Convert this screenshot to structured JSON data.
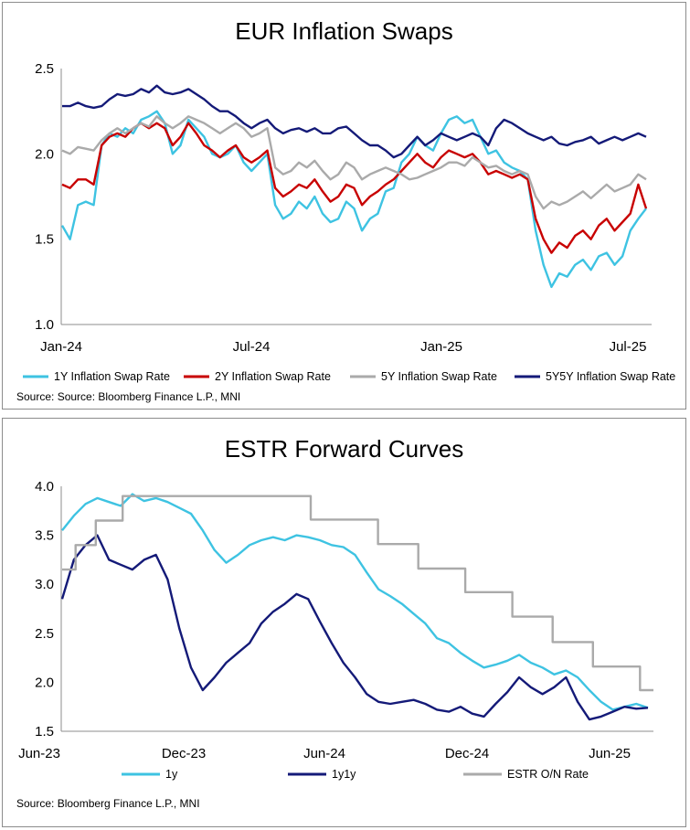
{
  "chart_data": [
    {
      "type": "line",
      "title": "EUR Inflation Swaps",
      "x_tick_labels": [
        "Jan-24",
        "Jul-24",
        "Jan-25",
        "Jul-25"
      ],
      "y_tick_labels": [
        "1.0",
        "1.5",
        "2.0",
        "2.5"
      ],
      "ylim": [
        1.0,
        2.5
      ],
      "grid": false,
      "legend_position": "bottom",
      "source": "Source: Source: Bloomberg Finance L.P., MNI",
      "series": [
        {
          "name": "1Y Inflation Swap Rate",
          "color": "#3ec3e2",
          "values": [
            1.58,
            1.5,
            1.7,
            1.72,
            1.7,
            2.05,
            2.12,
            2.1,
            2.15,
            2.12,
            2.2,
            2.22,
            2.25,
            2.18,
            2.0,
            2.05,
            2.2,
            2.15,
            2.1,
            2.0,
            1.98,
            2.0,
            2.05,
            1.95,
            1.9,
            1.95,
            2.0,
            1.7,
            1.62,
            1.65,
            1.72,
            1.68,
            1.75,
            1.65,
            1.6,
            1.62,
            1.72,
            1.68,
            1.55,
            1.62,
            1.65,
            1.78,
            1.8,
            1.95,
            2.0,
            2.1,
            2.05,
            2.02,
            2.12,
            2.2,
            2.22,
            2.18,
            2.2,
            2.1,
            2.0,
            2.02,
            1.95,
            1.92,
            1.9,
            1.85,
            1.55,
            1.35,
            1.22,
            1.3,
            1.28,
            1.35,
            1.38,
            1.32,
            1.4,
            1.42,
            1.35,
            1.4,
            1.55,
            1.62,
            1.68
          ]
        },
        {
          "name": "2Y Inflation Swap Rate",
          "color": "#c80000",
          "values": [
            1.82,
            1.8,
            1.85,
            1.85,
            1.82,
            2.05,
            2.1,
            2.12,
            2.1,
            2.15,
            2.18,
            2.15,
            2.18,
            2.15,
            2.05,
            2.1,
            2.18,
            2.12,
            2.05,
            2.02,
            1.98,
            2.02,
            2.05,
            1.98,
            1.95,
            1.98,
            2.02,
            1.8,
            1.75,
            1.78,
            1.82,
            1.8,
            1.85,
            1.78,
            1.72,
            1.75,
            1.82,
            1.8,
            1.7,
            1.75,
            1.78,
            1.82,
            1.85,
            1.9,
            1.95,
            2.0,
            1.95,
            1.92,
            1.98,
            2.02,
            2.0,
            1.98,
            2.0,
            1.95,
            1.88,
            1.9,
            1.88,
            1.86,
            1.88,
            1.85,
            1.62,
            1.5,
            1.42,
            1.48,
            1.45,
            1.52,
            1.55,
            1.5,
            1.58,
            1.62,
            1.55,
            1.6,
            1.65,
            1.82,
            1.68
          ]
        },
        {
          "name": "5Y Inflation Swap Rate",
          "color": "#aaaaaa",
          "values": [
            2.02,
            2.0,
            2.04,
            2.03,
            2.02,
            2.08,
            2.12,
            2.15,
            2.12,
            2.15,
            2.18,
            2.16,
            2.22,
            2.18,
            2.15,
            2.18,
            2.22,
            2.2,
            2.18,
            2.15,
            2.12,
            2.15,
            2.18,
            2.15,
            2.1,
            2.12,
            2.15,
            1.92,
            1.88,
            1.9,
            1.95,
            1.92,
            1.96,
            1.9,
            1.85,
            1.88,
            1.95,
            1.92,
            1.85,
            1.88,
            1.9,
            1.92,
            1.9,
            1.88,
            1.85,
            1.86,
            1.88,
            1.9,
            1.92,
            1.95,
            1.95,
            1.93,
            1.98,
            1.95,
            1.92,
            1.93,
            1.9,
            1.88,
            1.9,
            1.88,
            1.75,
            1.68,
            1.72,
            1.7,
            1.72,
            1.75,
            1.78,
            1.74,
            1.78,
            1.82,
            1.78,
            1.8,
            1.82,
            1.88,
            1.85
          ]
        },
        {
          "name": "5Y5Y Inflation Swap Rate",
          "color": "#141a78",
          "values": [
            2.28,
            2.28,
            2.3,
            2.28,
            2.27,
            2.28,
            2.32,
            2.35,
            2.34,
            2.35,
            2.38,
            2.36,
            2.4,
            2.36,
            2.35,
            2.36,
            2.38,
            2.35,
            2.32,
            2.28,
            2.25,
            2.25,
            2.22,
            2.18,
            2.15,
            2.18,
            2.2,
            2.15,
            2.12,
            2.14,
            2.15,
            2.13,
            2.15,
            2.12,
            2.12,
            2.15,
            2.16,
            2.12,
            2.08,
            2.05,
            2.05,
            2.02,
            1.98,
            2.0,
            2.05,
            2.1,
            2.05,
            2.08,
            2.12,
            2.1,
            2.08,
            2.1,
            2.12,
            2.1,
            2.05,
            2.15,
            2.2,
            2.18,
            2.15,
            2.12,
            2.1,
            2.08,
            2.1,
            2.06,
            2.05,
            2.07,
            2.08,
            2.1,
            2.06,
            2.08,
            2.1,
            2.08,
            2.1,
            2.12,
            2.1
          ]
        }
      ]
    },
    {
      "type": "line",
      "title": "ESTR Forward Curves",
      "x_tick_labels": [
        "Jun-23",
        "Dec-23",
        "Jun-24",
        "Dec-24",
        "Jun-25"
      ],
      "y_tick_labels": [
        "1.5",
        "2.0",
        "2.5",
        "3.0",
        "3.5",
        "4.0"
      ],
      "ylim": [
        1.5,
        4.0
      ],
      "grid": false,
      "legend_position": "bottom",
      "source": "Source: Bloomberg Finance L.P., MNI",
      "series": [
        {
          "name": "1y",
          "color": "#3ec3e2",
          "values": [
            3.55,
            3.7,
            3.82,
            3.88,
            3.84,
            3.8,
            3.92,
            3.85,
            3.88,
            3.84,
            3.78,
            3.72,
            3.55,
            3.35,
            3.22,
            3.3,
            3.4,
            3.45,
            3.48,
            3.45,
            3.5,
            3.48,
            3.45,
            3.4,
            3.38,
            3.3,
            3.12,
            2.95,
            2.88,
            2.8,
            2.7,
            2.6,
            2.45,
            2.4,
            2.3,
            2.22,
            2.15,
            2.18,
            2.22,
            2.28,
            2.2,
            2.15,
            2.08,
            2.12,
            2.05,
            1.92,
            1.8,
            1.72,
            1.75,
            1.78,
            1.74
          ]
        },
        {
          "name": "1y1y",
          "color": "#141a78",
          "values": [
            2.85,
            3.25,
            3.4,
            3.5,
            3.25,
            3.2,
            3.15,
            3.25,
            3.3,
            3.05,
            2.55,
            2.15,
            1.92,
            2.05,
            2.2,
            2.3,
            2.4,
            2.6,
            2.72,
            2.8,
            2.9,
            2.85,
            2.62,
            2.4,
            2.2,
            2.05,
            1.88,
            1.8,
            1.78,
            1.8,
            1.82,
            1.78,
            1.72,
            1.7,
            1.75,
            1.68,
            1.65,
            1.78,
            1.9,
            2.05,
            1.95,
            1.88,
            1.95,
            2.05,
            1.8,
            1.62,
            1.65,
            1.7,
            1.75,
            1.73,
            1.74
          ]
        },
        {
          "name": "ESTR O/N Rate",
          "color": "#aaaaaa",
          "steps": [
            [
              0,
              3.15
            ],
            [
              2,
              3.4
            ],
            [
              5,
              3.65
            ],
            [
              9,
              3.9
            ],
            [
              36,
              3.9
            ],
            [
              37,
              3.66
            ],
            [
              46,
              3.66
            ],
            [
              47,
              3.41
            ],
            [
              52,
              3.41
            ],
            [
              53,
              3.16
            ],
            [
              59,
              3.16
            ],
            [
              60,
              2.92
            ],
            [
              66,
              2.92
            ],
            [
              67,
              2.67
            ],
            [
              72,
              2.67
            ],
            [
              73,
              2.41
            ],
            [
              78,
              2.41
            ],
            [
              79,
              2.16
            ],
            [
              85,
              2.16
            ],
            [
              86,
              1.92
            ],
            [
              88,
              1.92
            ]
          ],
          "step_domain": 88
        }
      ]
    }
  ]
}
